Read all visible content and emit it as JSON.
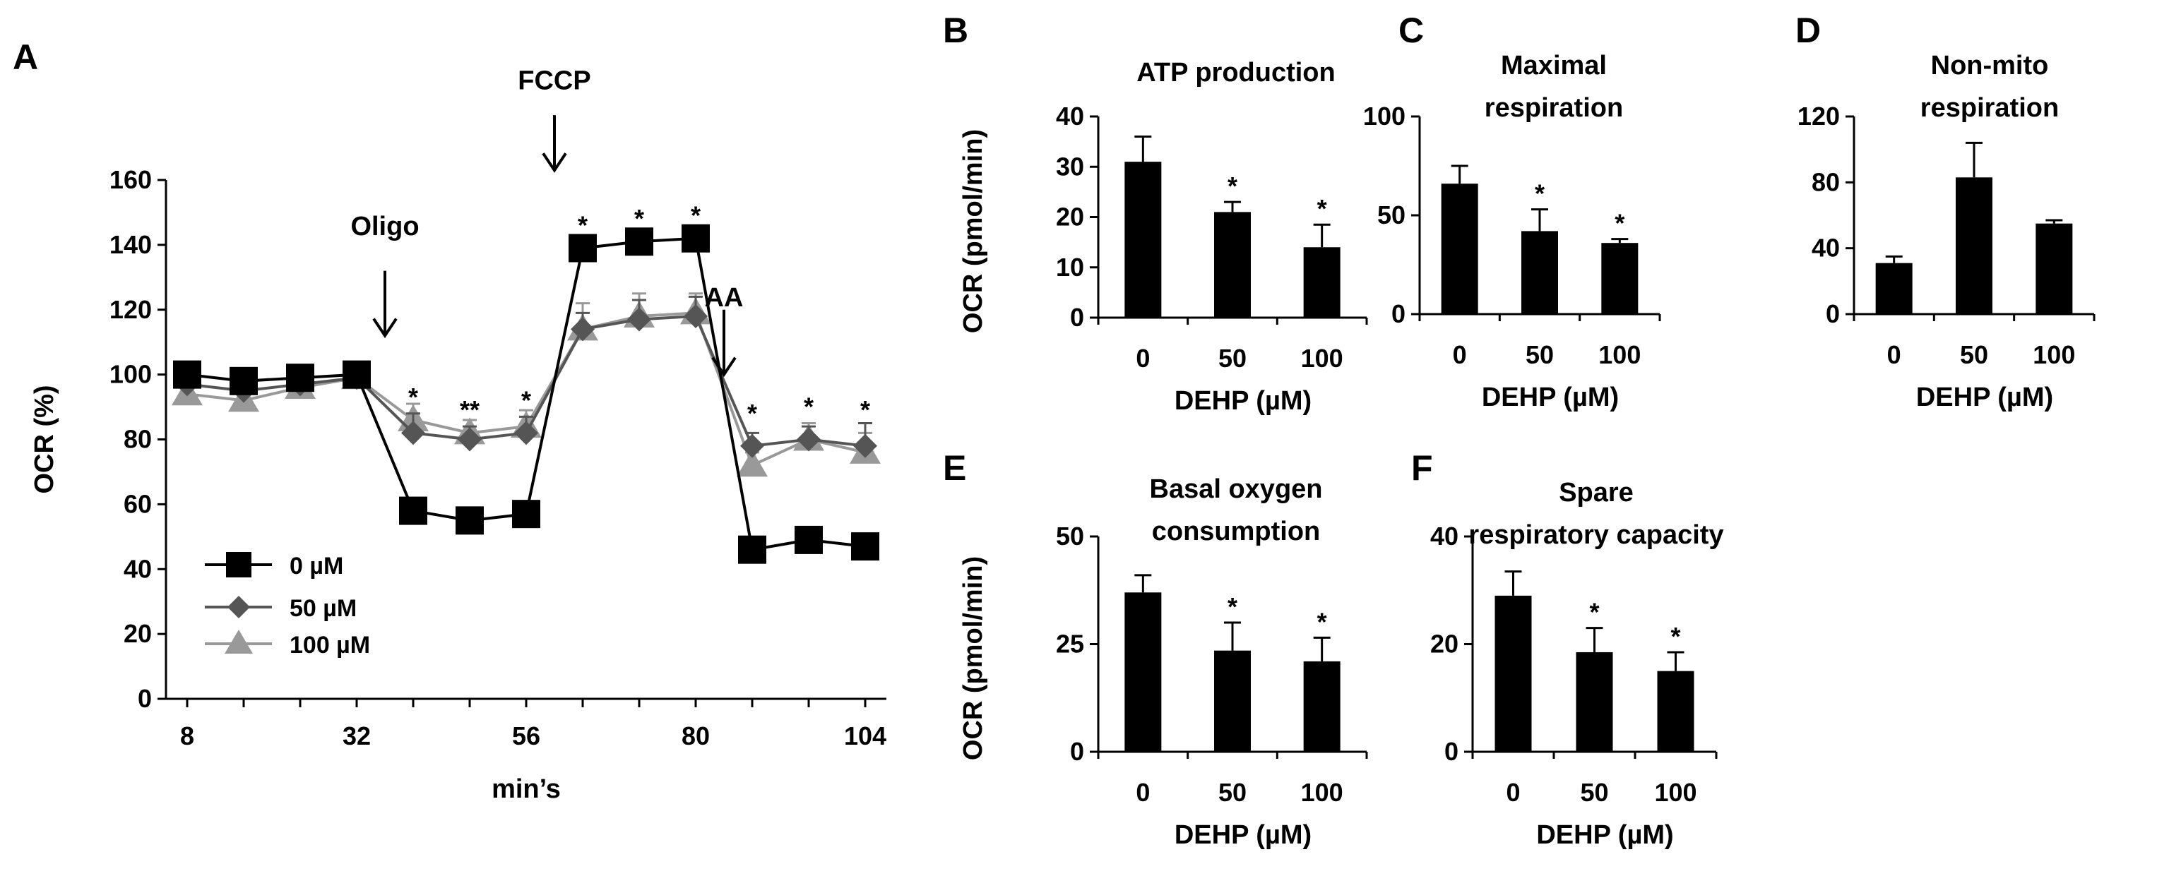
{
  "panels": [
    "A",
    "B",
    "C",
    "D",
    "E",
    "F"
  ],
  "colors": {
    "series0": "#000000",
    "series50": "#555555",
    "series100": "#999999",
    "bar": "#000000"
  },
  "chart_data": [
    {
      "id": "A",
      "type": "line",
      "letter": "A",
      "xlabel": "min’s",
      "ylabel": "OCR (%)",
      "ylim": [
        0,
        160
      ],
      "yticks": [
        0,
        20,
        40,
        60,
        80,
        100,
        120,
        140,
        160
      ],
      "xlim": [
        5,
        107
      ],
      "xticks": [
        8,
        32,
        56,
        80,
        104
      ],
      "x": [
        8,
        16,
        24,
        32,
        40,
        48,
        56,
        64,
        72,
        80,
        88,
        96,
        104
      ],
      "series": [
        {
          "name": "0 µM",
          "marker": "square",
          "color": "#000000",
          "values": [
            100,
            98,
            99,
            100,
            58,
            55,
            57,
            139,
            141,
            142,
            46,
            49,
            47
          ],
          "errors": [
            0,
            0,
            0,
            0,
            0,
            0,
            0,
            0,
            0,
            0,
            0,
            0,
            0
          ]
        },
        {
          "name": "50 µM",
          "marker": "diamond",
          "color": "#555555",
          "values": [
            97,
            95,
            97,
            99,
            82,
            80,
            82,
            114,
            117,
            118,
            78,
            80,
            78
          ],
          "errors": [
            0,
            0,
            0,
            0,
            6,
            4,
            5,
            5,
            6,
            6,
            4,
            4,
            7
          ]
        },
        {
          "name": "100 µM",
          "marker": "triangle",
          "color": "#999999",
          "values": [
            94,
            92,
            96,
            99,
            86,
            82,
            84,
            114,
            118,
            119,
            72,
            80,
            76
          ],
          "errors": [
            0,
            0,
            0,
            0,
            5,
            4,
            5,
            8,
            7,
            6,
            4,
            5,
            6
          ]
        }
      ],
      "significance": [
        {
          "x": 40,
          "y": 93,
          "label": "*"
        },
        {
          "x": 48,
          "y": 89,
          "label": "**"
        },
        {
          "x": 56,
          "y": 92,
          "label": "*"
        },
        {
          "x": 64,
          "y": 146,
          "label": "*"
        },
        {
          "x": 72,
          "y": 148,
          "label": "*"
        },
        {
          "x": 80,
          "y": 149,
          "label": "*"
        },
        {
          "x": 88,
          "y": 88,
          "label": "*"
        },
        {
          "x": 96,
          "y": 90,
          "label": "*"
        },
        {
          "x": 104,
          "y": 89,
          "label": "*"
        }
      ],
      "annotations": [
        {
          "label": "Oligo",
          "x": 36,
          "label_y": 143,
          "arrow_from": 132,
          "arrow_to": 112
        },
        {
          "label": "FCCP",
          "x": 60,
          "label_y": 188,
          "arrow_from": 180,
          "arrow_to": 163
        },
        {
          "label": "AA",
          "x": 84,
          "label_y": 121,
          "arrow_from": 120,
          "arrow_to": 100
        }
      ],
      "legend": "lower-left"
    },
    {
      "id": "B",
      "type": "bar",
      "letter": "B",
      "title": [
        "ATP production"
      ],
      "categories": [
        "0",
        "50",
        "100"
      ],
      "values": [
        31,
        21,
        14
      ],
      "errors": [
        5,
        2,
        4.5
      ],
      "significance": [
        "",
        "*",
        "*"
      ],
      "ylim": [
        0,
        40
      ],
      "yticks": [
        0,
        10,
        20,
        30,
        40
      ],
      "xlabel": "DEHP (µM)",
      "ylabel": "OCR (pmol/min)"
    },
    {
      "id": "C",
      "type": "bar",
      "letter": "C",
      "title": [
        "Maximal",
        "respiration"
      ],
      "categories": [
        "0",
        "50",
        "100"
      ],
      "values": [
        66,
        42,
        36
      ],
      "errors": [
        9,
        11,
        2
      ],
      "significance": [
        "",
        "*",
        "*"
      ],
      "ylim": [
        0,
        100
      ],
      "yticks": [
        0,
        50,
        100
      ],
      "xlabel": "DEHP (µM)",
      "ylabel": ""
    },
    {
      "id": "D",
      "type": "bar",
      "letter": "D",
      "title": [
        "Non-mito",
        "respiration"
      ],
      "categories": [
        "0",
        "50",
        "100"
      ],
      "values": [
        31,
        83,
        55
      ],
      "errors": [
        4,
        21,
        2
      ],
      "significance": [
        "",
        "",
        ""
      ],
      "ylim": [
        0,
        120
      ],
      "yticks": [
        0,
        40,
        80,
        120
      ],
      "xlabel": "DEHP (µM)",
      "ylabel": ""
    },
    {
      "id": "E",
      "type": "bar",
      "letter": "E",
      "title": [
        "Basal oxygen",
        "consumption"
      ],
      "categories": [
        "0",
        "50",
        "100"
      ],
      "values": [
        37,
        23.5,
        21
      ],
      "errors": [
        4,
        6.5,
        5.5
      ],
      "significance": [
        "",
        "*",
        "*"
      ],
      "ylim": [
        0,
        50
      ],
      "yticks": [
        0,
        25,
        50
      ],
      "xlabel": "DEHP (µM)",
      "ylabel": "OCR (pmol/min)"
    },
    {
      "id": "F",
      "type": "bar",
      "letter": "F",
      "title": [
        "Spare",
        "respiratory capacity"
      ],
      "categories": [
        "0",
        "50",
        "100"
      ],
      "values": [
        29,
        18.5,
        15
      ],
      "errors": [
        4.5,
        4.5,
        3.5
      ],
      "significance": [
        "",
        "*",
        "*"
      ],
      "ylim": [
        0,
        40
      ],
      "yticks": [
        0,
        20,
        40
      ],
      "xlabel": "DEHP (µM)",
      "ylabel": ""
    }
  ]
}
